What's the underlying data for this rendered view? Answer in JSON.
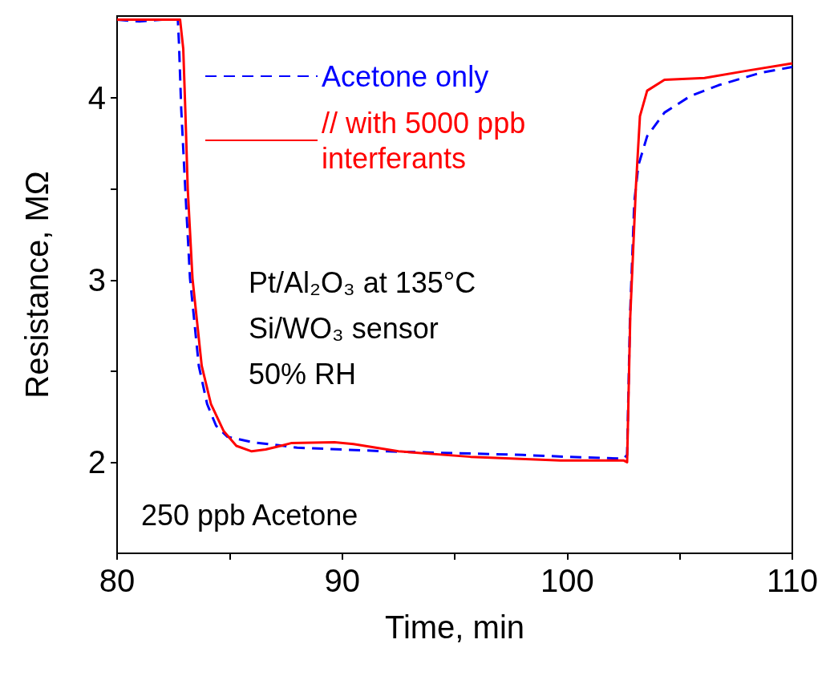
{
  "chart_data": {
    "type": "line",
    "xlabel": "Time, min",
    "ylabel": "Resistance, MΩ",
    "xlim": [
      80,
      110
    ],
    "xticks": [
      80,
      {
        "value": 85,
        "label": null
      },
      90,
      {
        "value": 95,
        "label": null
      },
      100,
      {
        "value": 105,
        "label": null
      },
      110
    ],
    "ylim": [
      1.5,
      4.45
    ],
    "yticks": [
      {
        "value": 2.5,
        "label": null
      },
      2,
      3,
      {
        "value": 3.5,
        "label": null
      },
      4
    ],
    "grid": false,
    "legend": "top",
    "marker": "none",
    "annotations": [
      "Pt/Al₂O₃ at 135°C",
      "Si/WO₃ sensor",
      "50% RH",
      "250 ppb Acetone"
    ],
    "series": [
      {
        "name": "Acetone only",
        "color": "#0000ff",
        "line_style": "dashed",
        "x": [
          80,
          81,
          82,
          82.7,
          82.75,
          82.85,
          83.03,
          83.24,
          83.63,
          84.0,
          84.4,
          84.9,
          86,
          87.4,
          88,
          90,
          92,
          95,
          98,
          100,
          102.5,
          102.66,
          102.79,
          102.98,
          103.16,
          103.55,
          104.32,
          105.46,
          106.72,
          108.64,
          110
        ],
        "values": [
          4.43,
          4.42,
          4.43,
          4.43,
          4.3,
          3.94,
          3.5,
          3.01,
          2.53,
          2.32,
          2.2,
          2.14,
          2.11,
          2.09,
          2.08,
          2.07,
          2.06,
          2.05,
          2.04,
          2.03,
          2.02,
          2.04,
          2.8,
          3.43,
          3.63,
          3.79,
          3.92,
          4.01,
          4.07,
          4.14,
          4.17
        ]
      },
      {
        "name": "// with 5000 ppb interferants",
        "color": "#ff0000",
        "line_style": "solid",
        "x": [
          80,
          81,
          82,
          82.8,
          82.94,
          83.03,
          83.14,
          83.35,
          83.76,
          84.17,
          84.74,
          85.3,
          85.98,
          86.6,
          87.27,
          87.73,
          89.66,
          90.5,
          92.5,
          95.7,
          99.7,
          102.5,
          102.66,
          102.8,
          103.05,
          103.23,
          103.55,
          104.32,
          106.1,
          108.0,
          110
        ],
        "values": [
          4.43,
          4.43,
          4.43,
          4.43,
          4.27,
          3.94,
          3.5,
          3.01,
          2.53,
          2.32,
          2.17,
          2.09,
          2.06,
          2.07,
          2.09,
          2.105,
          2.11,
          2.1,
          2.06,
          2.03,
          2.01,
          2.01,
          2.0,
          2.8,
          3.51,
          3.9,
          4.04,
          4.1,
          4.11,
          4.15,
          4.19
        ]
      }
    ]
  }
}
